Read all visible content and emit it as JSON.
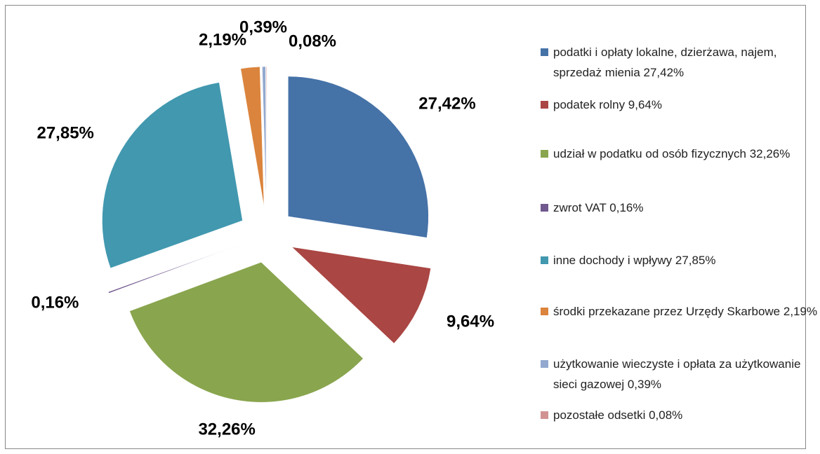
{
  "chart_data": {
    "type": "pie",
    "categories": [
      "podatki i opłaty lokalne, dzierżawa, najem, sprzedaż mienia 27,42%",
      "podatek rolny 9,64%",
      "udział w podatku od osób fizycznych 32,26%",
      "zwrot VAT 0,16%",
      "inne dochody i wpływy 27,85%",
      "środki przekazane przez Urzędy Skarbowe 2,19%",
      "użytkowanie wieczyste i opłata za użytkowanie sieci gazowej 0,39%",
      "pozostałe odsetki 0,08%"
    ],
    "values": [
      27.42,
      9.64,
      32.26,
      0.16,
      27.85,
      2.19,
      0.39,
      0.08
    ],
    "value_labels": [
      "27,42%",
      "9,64%",
      "32,26%",
      "0,16%",
      "27,85%",
      "2,19%",
      "0,39%",
      "0,08%"
    ],
    "colors": [
      "#4572a7",
      "#aa4643",
      "#89a54e",
      "#71588f",
      "#4198af",
      "#db843d",
      "#93a9cf",
      "#d19392"
    ],
    "legend": "right"
  }
}
